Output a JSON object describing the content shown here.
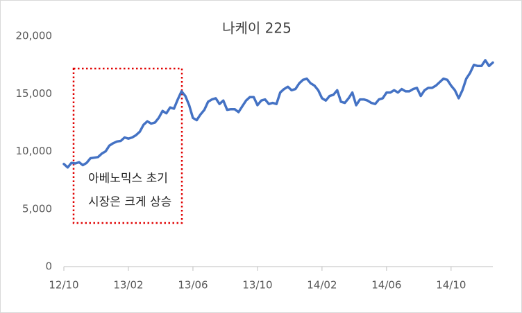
{
  "chart_data": {
    "type": "line",
    "title": "나케이 225",
    "categories": [
      "12/10",
      null,
      null,
      null,
      null,
      null,
      null,
      null,
      null,
      null,
      null,
      null,
      null,
      null,
      null,
      null,
      null,
      "13/02",
      null,
      null,
      null,
      null,
      null,
      null,
      null,
      null,
      null,
      null,
      null,
      null,
      null,
      null,
      null,
      null,
      "13/06",
      null,
      null,
      null,
      null,
      null,
      null,
      null,
      null,
      null,
      null,
      null,
      null,
      null,
      null,
      null,
      null,
      "13/10",
      null,
      null,
      null,
      null,
      null,
      null,
      null,
      null,
      null,
      null,
      null,
      null,
      null,
      null,
      null,
      null,
      "14/02",
      null,
      null,
      null,
      null,
      null,
      null,
      null,
      null,
      null,
      null,
      null,
      null,
      null,
      null,
      null,
      null,
      "14/06",
      null,
      null,
      null,
      null,
      null,
      null,
      null,
      null,
      null,
      null,
      null,
      null,
      null,
      null,
      null,
      null,
      "14/10",
      null,
      null,
      null,
      null,
      null,
      null,
      null,
      null,
      null,
      null,
      null
    ],
    "values": [
      8900,
      8600,
      9000,
      8950,
      9050,
      8800,
      9000,
      9400,
      9450,
      9500,
      9800,
      10000,
      10500,
      10700,
      10850,
      10900,
      11200,
      11100,
      11200,
      11400,
      11700,
      12300,
      12600,
      12400,
      12500,
      12900,
      13500,
      13300,
      13800,
      13700,
      14500,
      15200,
      14800,
      14000,
      12900,
      12700,
      13200,
      13600,
      14300,
      14500,
      14600,
      14100,
      14400,
      13600,
      13650,
      13650,
      13400,
      13900,
      14400,
      14700,
      14700,
      14000,
      14400,
      14500,
      14100,
      14200,
      14100,
      15100,
      15400,
      15600,
      15300,
      15400,
      15900,
      16200,
      16300,
      15900,
      15700,
      15300,
      14600,
      14400,
      14800,
      14900,
      15300,
      14300,
      14200,
      14600,
      15100,
      14000,
      14500,
      14500,
      14400,
      14200,
      14100,
      14500,
      14600,
      15100,
      15100,
      15300,
      15100,
      15400,
      15200,
      15200,
      15400,
      15500,
      14800,
      15300,
      15500,
      15500,
      15700,
      16000,
      16300,
      16200,
      15700,
      15300,
      14600,
      15300,
      16300,
      16800,
      17500,
      17400,
      17400,
      17900,
      17400,
      17700
    ],
    "color": "#4472c4",
    "ylim": [
      0,
      20000
    ],
    "yticks": [
      0,
      {
        "value": 5000,
        "label": "5,000"
      },
      {
        "value": 10000,
        "label": "10,000"
      },
      {
        "value": 15000,
        "label": "15,000"
      },
      {
        "value": 20000,
        "label": "20,000"
      }
    ],
    "grid": false,
    "annotations": [
      "아베노믹스 초기",
      "시장은 크게 상승"
    ]
  }
}
